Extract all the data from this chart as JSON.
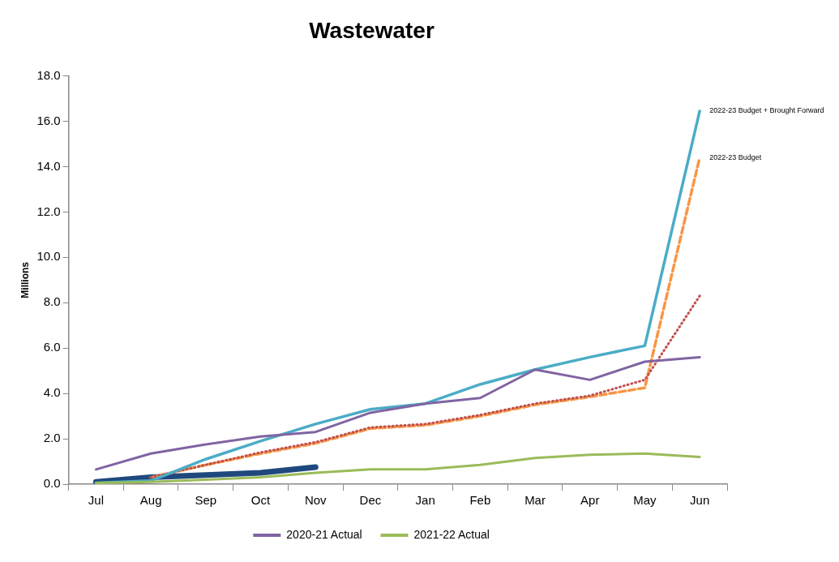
{
  "chart_data": {
    "type": "line",
    "title": "Wastewater",
    "ylabel": "Millions",
    "categories": [
      "Jul",
      "Aug",
      "Sep",
      "Oct",
      "Nov",
      "Dec",
      "Jan",
      "Feb",
      "Mar",
      "Apr",
      "May",
      "Jun"
    ],
    "series": [
      {
        "name": "2020-21 Actual",
        "color": "#8064a2",
        "values": [
          0.65,
          1.35,
          1.75,
          2.1,
          2.3,
          3.15,
          3.55,
          3.8,
          5.05,
          4.6,
          5.4,
          5.6
        ]
      },
      {
        "name": "2021-22 Actual",
        "color": "#9bbb59",
        "values": [
          0.05,
          0.1,
          0.2,
          0.3,
          0.5,
          0.65,
          0.65,
          0.85,
          1.15,
          1.3,
          1.35,
          1.2
        ]
      },
      {
        "color": "#4bacc6",
        "values": [
          0.05,
          0.15,
          1.1,
          1.9,
          2.65,
          3.3,
          3.55,
          4.4,
          5.05,
          5.6,
          6.1,
          16.45
        ]
      },
      {
        "color": "#c0504d",
        "line_style": "dotted",
        "values": [
          null,
          0.3,
          0.85,
          1.4,
          1.85,
          2.5,
          2.65,
          3.05,
          3.55,
          3.9,
          4.6,
          8.3
        ]
      },
      {
        "color": "#f79646",
        "line_style": "dashed",
        "values": [
          null,
          0.3,
          0.85,
          1.35,
          1.8,
          2.45,
          2.6,
          3.0,
          3.5,
          3.85,
          4.25,
          14.4
        ]
      },
      {
        "color": "#1f497d",
        "values": [
          0.1,
          0.3,
          0.4,
          0.5,
          0.75,
          null,
          null,
          null,
          null,
          null,
          null,
          null
        ]
      }
    ],
    "annotations": [
      {
        "text": "2022-23 Budget + Brought Forward",
        "x": "Jun",
        "y": 16.45
      },
      {
        "text": "2022-23 Budget",
        "x": "Jun",
        "y": 14.4
      }
    ],
    "ylim": [
      0,
      18
    ],
    "yticks": [
      {
        "value": 0,
        "label": "0.0"
      },
      {
        "value": 2,
        "label": "2.0"
      },
      {
        "value": 4,
        "label": "4.0"
      },
      {
        "value": 6,
        "label": "6.0"
      },
      {
        "value": 8,
        "label": "8.0"
      },
      {
        "value": 10,
        "label": "10.0"
      },
      {
        "value": 12,
        "label": "12.0"
      },
      {
        "value": 14,
        "label": "14.0"
      },
      {
        "value": 16,
        "label": "16.0"
      },
      {
        "value": 18,
        "label": "18.0"
      }
    ],
    "grid": false,
    "legend": "bottom",
    "marker": "none",
    "line_style": "solid"
  }
}
